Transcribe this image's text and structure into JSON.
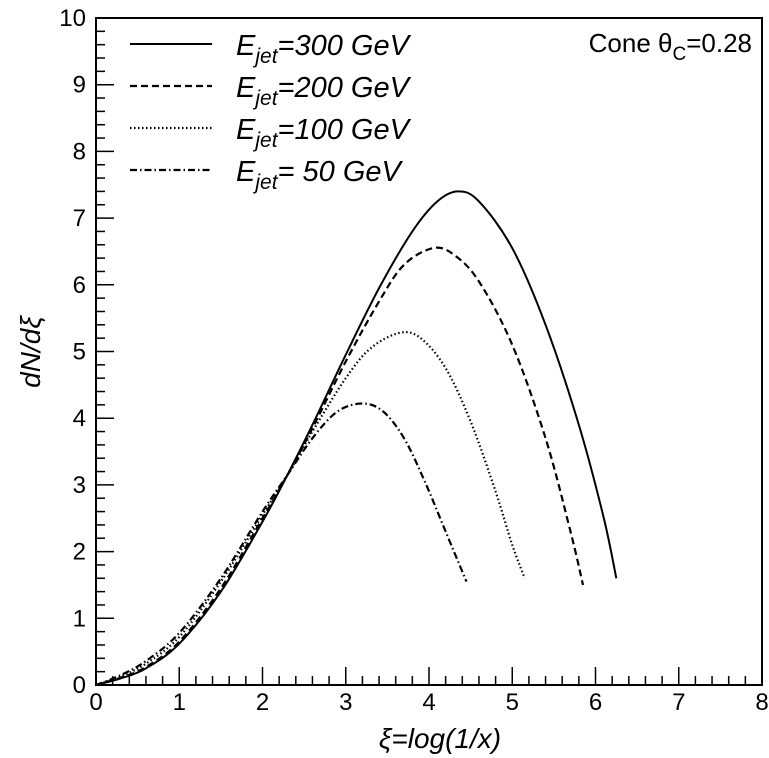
{
  "chart_data": {
    "type": "line",
    "title": "",
    "xlabel": "ξ=log(1/x)",
    "ylabel": "dN/dξ",
    "xlim": [
      0,
      8
    ],
    "ylim": [
      0,
      10
    ],
    "xticks": [
      "0",
      "1",
      "2",
      "3",
      "4",
      "5",
      "6",
      "7",
      "8"
    ],
    "yticks": [
      "0",
      "1",
      "2",
      "3",
      "4",
      "5",
      "6",
      "7",
      "8",
      "9",
      "10"
    ],
    "grid": false,
    "legend_position": "top-left",
    "annotation": {
      "prefix": "Cone θ",
      "subscript": "C",
      "suffix": "=0.28"
    },
    "series": [
      {
        "name": "E_jet=300 GeV",
        "name_main": "E",
        "name_sub": "jet",
        "name_rest": "=300 GeV",
        "dash": "solid",
        "x": [
          0,
          0.3,
          0.6,
          1.0,
          1.5,
          2.0,
          2.3,
          2.6,
          3.0,
          3.4,
          3.8,
          4.1,
          4.35,
          4.6,
          5.0,
          5.4,
          5.8,
          6.1,
          6.25
        ],
        "y": [
          0,
          0.1,
          0.25,
          0.62,
          1.4,
          2.45,
          3.15,
          3.9,
          4.95,
          5.95,
          6.8,
          7.25,
          7.4,
          7.25,
          6.55,
          5.4,
          3.9,
          2.5,
          1.6
        ]
      },
      {
        "name": "E_jet=200 GeV",
        "name_main": "E",
        "name_sub": "jet",
        "name_rest": "=200 GeV",
        "dash": "dashed",
        "x": [
          0,
          0.3,
          0.6,
          1.0,
          1.5,
          2.0,
          2.3,
          2.6,
          3.0,
          3.4,
          3.7,
          4.05,
          4.3,
          4.6,
          5.0,
          5.4,
          5.7,
          5.85
        ],
        "y": [
          0,
          0.11,
          0.27,
          0.65,
          1.45,
          2.5,
          3.15,
          3.85,
          4.85,
          5.75,
          6.3,
          6.55,
          6.45,
          6.05,
          5.1,
          3.7,
          2.3,
          1.5
        ]
      },
      {
        "name": "E_jet=100 GeV",
        "name_main": "E",
        "name_sub": "jet",
        "name_rest": "=100 GeV",
        "dash": "dotted",
        "x": [
          0,
          0.3,
          0.6,
          1.0,
          1.5,
          2.0,
          2.3,
          2.6,
          3.0,
          3.3,
          3.65,
          3.9,
          4.2,
          4.5,
          4.8,
          5.0,
          5.15
        ],
        "y": [
          0,
          0.13,
          0.32,
          0.72,
          1.55,
          2.55,
          3.15,
          3.8,
          4.6,
          5.05,
          5.28,
          5.2,
          4.75,
          3.95,
          2.9,
          2.1,
          1.6
        ]
      },
      {
        "name": "E_jet= 50 GeV",
        "name_main": "E",
        "name_sub": "jet",
        "name_rest": "= 50 GeV",
        "dash": "dashdot",
        "x": [
          0,
          0.3,
          0.6,
          1.0,
          1.5,
          2.0,
          2.3,
          2.6,
          2.9,
          3.2,
          3.45,
          3.7,
          3.95,
          4.2,
          4.45
        ],
        "y": [
          0,
          0.15,
          0.36,
          0.78,
          1.6,
          2.6,
          3.15,
          3.7,
          4.1,
          4.22,
          4.1,
          3.7,
          3.05,
          2.3,
          1.55
        ]
      }
    ]
  }
}
